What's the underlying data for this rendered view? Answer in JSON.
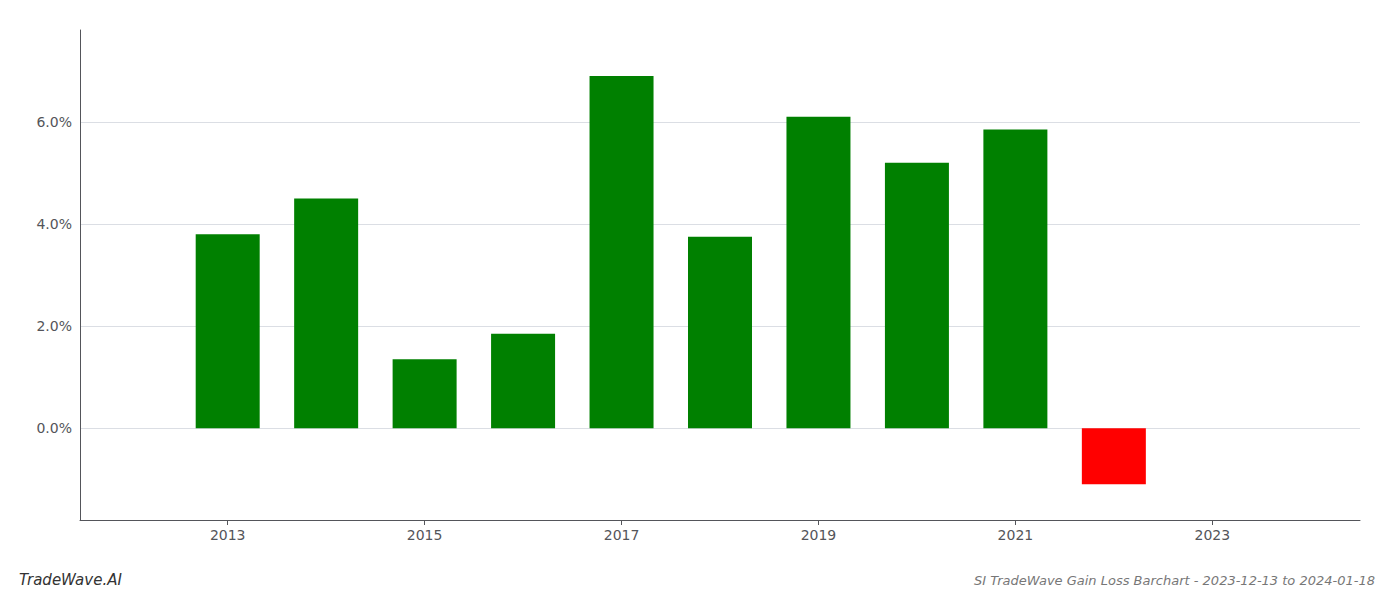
{
  "chart_data": {
    "type": "bar",
    "title": "SI TradeWave Gain Loss Barchart - 2023-12-13 to 2024-01-18",
    "annotations": [
      "TradeWave.AI"
    ],
    "x": [
      2013,
      2014,
      2015,
      2016,
      2017,
      2018,
      2019,
      2020,
      2021,
      2022
    ],
    "values": [
      0.038,
      0.045,
      0.0135,
      0.0185,
      0.069,
      0.0375,
      0.061,
      0.052,
      0.0585,
      -0.011
    ],
    "colors": [
      "#008000",
      "#008000",
      "#008000",
      "#008000",
      "#008000",
      "#008000",
      "#008000",
      "#008000",
      "#008000",
      "#ff0000"
    ],
    "xlim": [
      2011.5,
      2024.5
    ],
    "xticks": [
      2013,
      2015,
      2017,
      2019,
      2021,
      2023
    ],
    "ylim": [
      -0.018,
      0.078
    ],
    "yticks": [
      {
        "value": 0.0,
        "label": "0.0%"
      },
      {
        "value": 0.02,
        "label": "2.0%"
      },
      {
        "value": 0.04,
        "label": "4.0%"
      },
      {
        "value": 0.06,
        "label": "6.0%"
      }
    ],
    "grid": true
  }
}
